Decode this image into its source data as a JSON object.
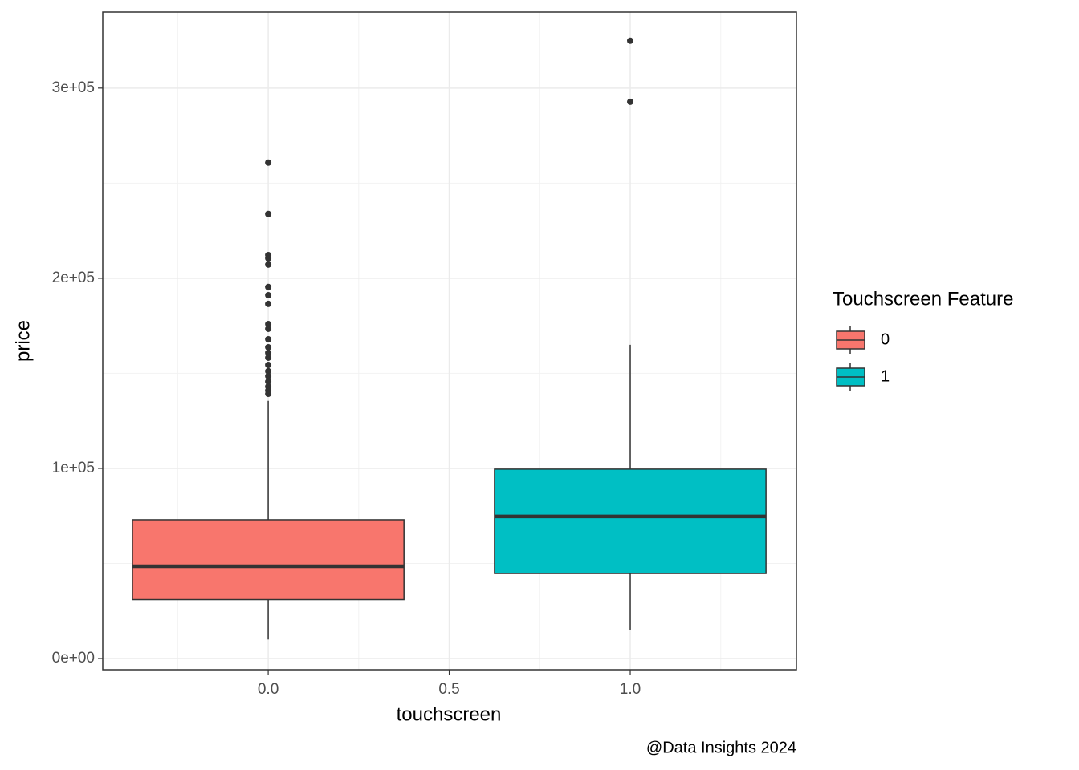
{
  "chart_data": {
    "type": "boxplot",
    "x_label": "touchscreen",
    "y_label": "price",
    "legend_title": "Touchscreen Feature",
    "legend_position": "right",
    "caption": "@Data Insights 2024",
    "xlim": [
      -0.457,
      1.459
    ],
    "xticks": [
      {
        "value": 0,
        "label": "0.0"
      },
      0.5,
      {
        "value": 1,
        "label": "1.0"
      }
    ],
    "x_minor_ticks": [
      -0.25,
      0.25,
      0.75,
      1.25
    ],
    "ylim": [
      -5900,
      340000
    ],
    "yticks": [
      {
        "value": 0,
        "label": "0e+00"
      },
      {
        "value": 100000,
        "label": "1e+05"
      },
      {
        "value": 200000,
        "label": "2e+05"
      },
      {
        "value": 300000,
        "label": "3e+05"
      }
    ],
    "y_minor_ticks": [
      50000,
      150000,
      250000
    ],
    "grid": true,
    "box_width": 0.75,
    "boxes": [
      {
        "name": "0",
        "x": 0,
        "color": "#F8766D",
        "whisker_low": 10000,
        "q1": 31000,
        "median": 48500,
        "q3": 73000,
        "whisker_high": 135500,
        "outliers": [
          260800,
          233800,
          212200,
          210500,
          207200,
          195400,
          191100,
          186500,
          175900,
          173400,
          167900,
          163700,
          160800,
          158200,
          154400,
          151100,
          148500,
          145600,
          143000,
          140900,
          139200
        ]
      },
      {
        "name": "1",
        "x": 1,
        "color": "#00BFC4",
        "whisker_low": 15200,
        "q1": 44700,
        "median": 74700,
        "q3": 99600,
        "whisker_high": 165000,
        "outliers": [
          324900,
          292800
        ]
      }
    ]
  }
}
